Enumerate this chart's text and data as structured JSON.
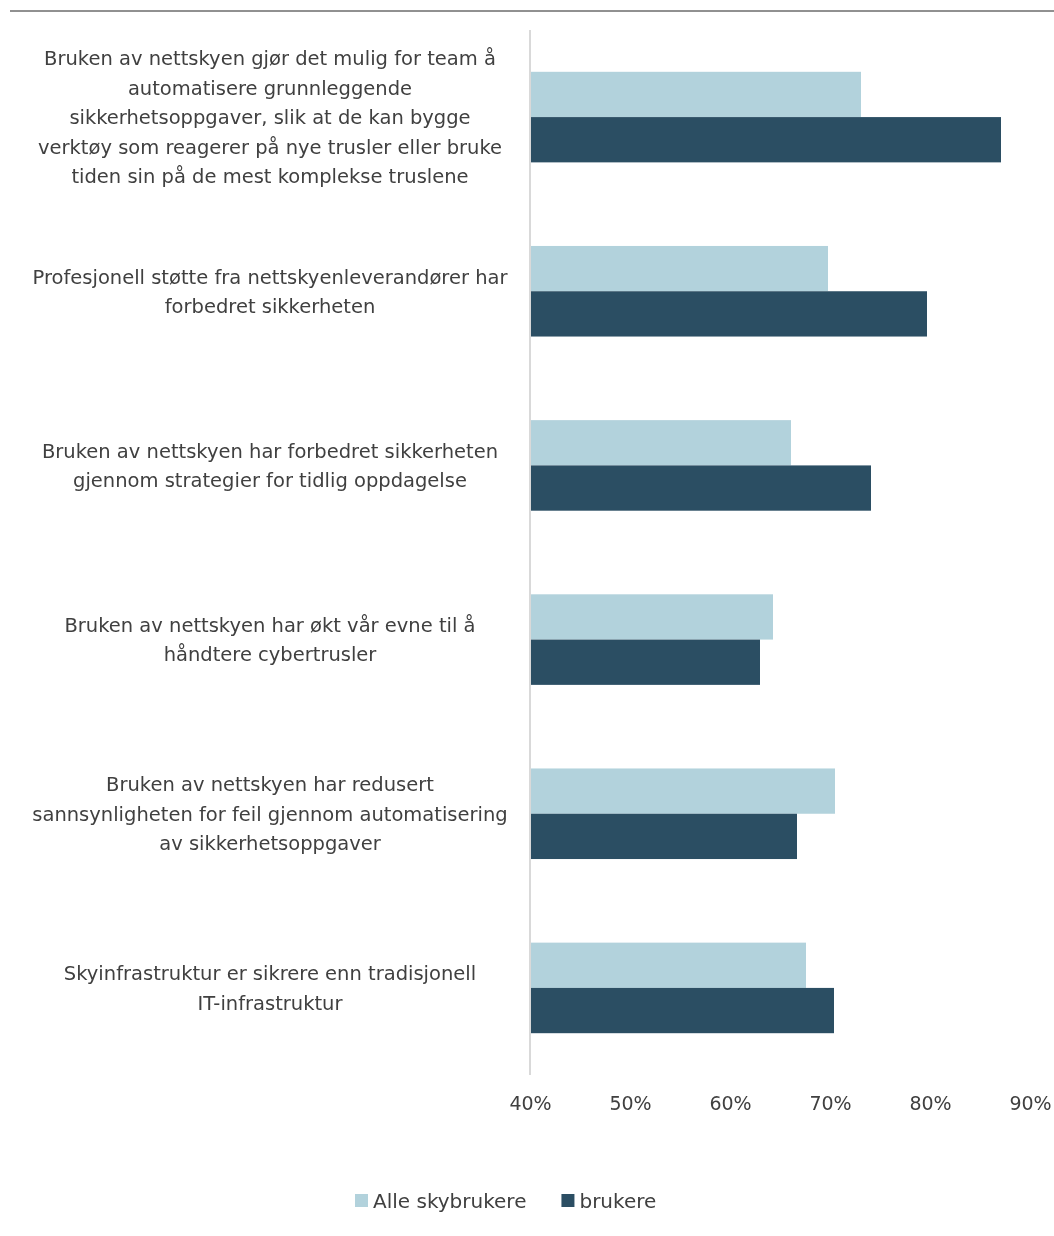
{
  "chart_data": {
    "type": "bar",
    "orientation": "horizontal",
    "categories": [
      "Bruken av nettskyen gjør det mulig for team å automatisere grunnleggende sikkerhetsoppgaver, slik at de kan bygge verktøy som reagerer på nye trusler eller bruke tiden sin på de mest komplekse truslene",
      "Profesjonell støtte fra nettskyenleverandører har forbedret sikkerheten",
      "Bruken av nettskyen har forbedret sikkerheten gjennom strategier for tidlig oppdagelse",
      "Bruken av nettskyen har økt vår evne til å håndtere cybertrusler",
      "Bruken av nettskyen har redusert sannsynligheten for feil gjennom automatisering av sikkerhetsoppgaver",
      "Skyinfrastruktur er sikrere enn tradisjonell IT-infrastruktur"
    ],
    "series": [
      {
        "name": "Alle skybrukere",
        "color": "#b2d2dc",
        "values": [
          73.1,
          69.8,
          66.1,
          64.3,
          70.5,
          67.6
        ]
      },
      {
        "name": "brukere",
        "color": "#2b4e63",
        "values": [
          87.1,
          79.7,
          74.1,
          63.0,
          66.7,
          70.4
        ]
      }
    ],
    "xlim": [
      40,
      90
    ],
    "xticks": [
      {
        "value": 40,
        "label": "40%"
      },
      {
        "value": 50,
        "label": "50%"
      },
      {
        "value": 60,
        "label": "60%"
      },
      {
        "value": 70,
        "label": "70%"
      },
      {
        "value": 80,
        "label": "80%"
      },
      {
        "value": 90,
        "label": "90%"
      }
    ],
    "legend": "bottom"
  }
}
